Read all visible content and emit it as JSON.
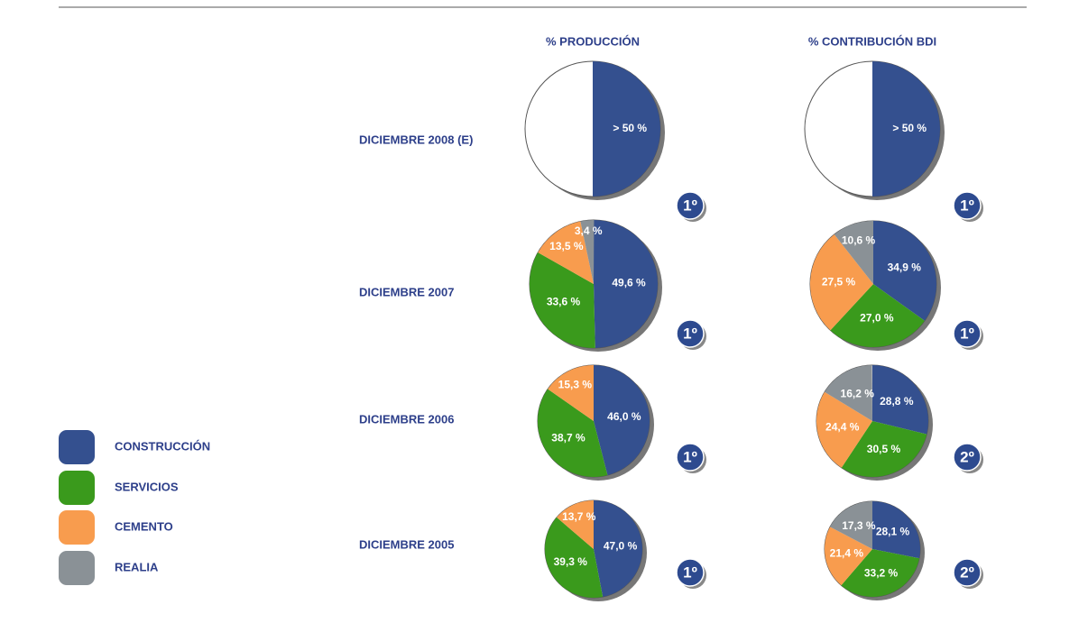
{
  "headers": [
    "% PRODUCCIÓN",
    "% CONTRIBUCIÓN BDI"
  ],
  "rows": [
    "DICIEMBRE 2008 (E)",
    "DICIEMBRE 2007",
    "DICIEMBRE 2006",
    "DICIEMBRE 2005"
  ],
  "legend": [
    {
      "name": "CONSTRUCCIÓN",
      "color": "#34508f"
    },
    {
      "name": "SERVICIOS",
      "color": "#3a9a1c"
    },
    {
      "name": "CEMENTO",
      "color": "#f89c4e"
    },
    {
      "name": "REALIA",
      "color": "#8a9196"
    }
  ],
  "chart_data": [
    {
      "type": "pie",
      "values": [
        50
      ],
      "value_labels": [
        "> 50 %"
      ],
      "rank": "1º"
    },
    {
      "type": "pie",
      "values": [
        49.6,
        33.6,
        13.5,
        3.4
      ],
      "value_labels": [
        "49,6 %",
        "33,6 %",
        "13,5 %",
        "3,4 %"
      ],
      "rank": "1º"
    },
    {
      "type": "pie",
      "values": [
        46.0,
        38.7,
        15.3
      ],
      "value_labels": [
        "46,0 %",
        "38,7 %",
        "15,3 %"
      ],
      "rank": "1º"
    },
    {
      "type": "pie",
      "values": [
        47.0,
        39.3,
        13.7
      ],
      "value_labels": [
        "47,0 %",
        "39,3 %",
        "13,7 %"
      ],
      "rank": "1º"
    },
    {
      "type": "pie",
      "values": [
        50
      ],
      "value_labels": [
        "> 50 %"
      ],
      "rank": "1º"
    },
    {
      "type": "pie",
      "values": [
        34.9,
        27.0,
        27.5,
        10.6
      ],
      "value_labels": [
        "34,9 %",
        "27,0 %",
        "27,5 %",
        "10,6 %"
      ],
      "rank": "1º"
    },
    {
      "type": "pie",
      "values": [
        28.8,
        30.5,
        24.4,
        16.2
      ],
      "value_labels": [
        "28,8 %",
        "30,5 %",
        "24,4 %",
        "16,2 %"
      ],
      "rank": "2º"
    },
    {
      "type": "pie",
      "values": [
        28.1,
        33.2,
        21.4,
        17.3
      ],
      "value_labels": [
        "28,1 %",
        "33,2 %",
        "21,4 %",
        "17,3 %"
      ],
      "rank": "2º"
    }
  ]
}
